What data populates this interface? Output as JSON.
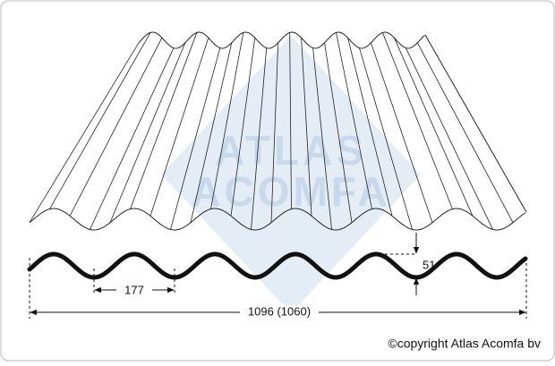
{
  "watermark": {
    "line1": "ATLAS",
    "line2": "ACOMFA"
  },
  "dimensions": {
    "pitch": "177",
    "height": "51",
    "width": "1096 (1060)"
  },
  "copyright": "©copyright Atlas Acomfa bv"
}
